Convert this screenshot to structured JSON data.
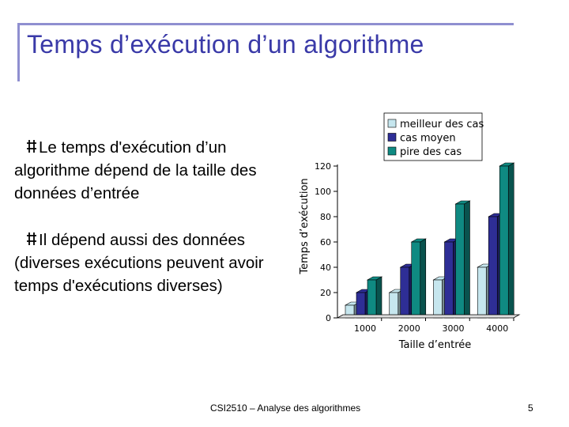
{
  "slide": {
    "title": "Temps d’exécution d’un algorithme",
    "bullets": [
      "Le temps d'exécution d’un algorithme dépend de la taille des données d’entrée",
      "Il dépend aussi des données (diverses exécutions peuvent avoir temps d'exécutions diverses)"
    ],
    "footer": "CSI2510 – Analyse des algorithmes",
    "page_number": "5"
  },
  "colors": {
    "title": "#3a3aa8",
    "accent_bar": "#8f8fd0",
    "series": [
      "#c6e6ee",
      "#2e2e96",
      "#0f8a82"
    ]
  },
  "chart_data": {
    "type": "bar",
    "categories": [
      "1000",
      "2000",
      "3000",
      "4000"
    ],
    "series": [
      {
        "name": "meilleur des cas",
        "values": [
          10,
          20,
          30,
          40
        ]
      },
      {
        "name": "cas moyen",
        "values": [
          20,
          40,
          60,
          80
        ]
      },
      {
        "name": "pire des cas",
        "values": [
          30,
          60,
          90,
          120
        ]
      }
    ],
    "xlabel": "Taille d’entrée",
    "ylabel": "Temps d’exécution",
    "ylim": [
      0,
      120
    ],
    "yticks": [
      0,
      20,
      40,
      60,
      80,
      100,
      120
    ],
    "legend_position": "top-right",
    "style": "3d-columns",
    "grid": false
  }
}
